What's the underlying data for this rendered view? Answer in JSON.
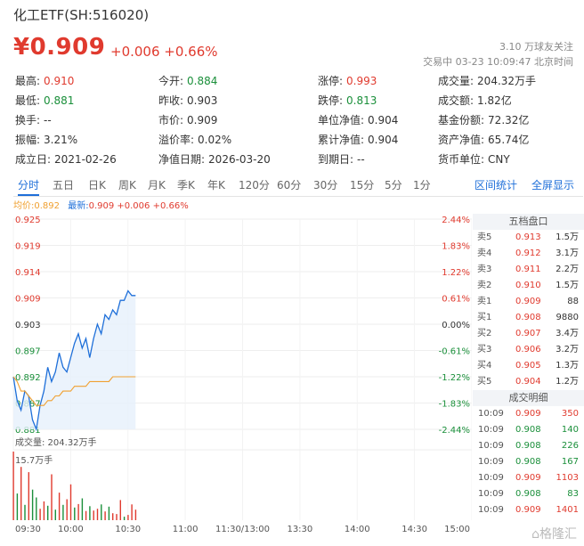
{
  "header": {
    "title": "化工ETF(SH:516020)",
    "price": "¥0.909",
    "change": "+0.006 +0.66%",
    "followers": "3.10",
    "followers_unit": "万球友关注",
    "trade_status": "交易中 03-23 10:09:47 北京时间"
  },
  "stats": [
    [
      {
        "label": "最高:",
        "value": "0.910",
        "color": "red"
      },
      {
        "label": "今开:",
        "value": "0.884",
        "color": "green"
      },
      {
        "label": "涨停:",
        "value": "0.993",
        "color": "red"
      },
      {
        "label": "成交量:",
        "value": "204.32万手",
        "color": "dark"
      }
    ],
    [
      {
        "label": "最低:",
        "value": "0.881",
        "color": "green"
      },
      {
        "label": "昨收:",
        "value": "0.903",
        "color": "dark"
      },
      {
        "label": "跌停:",
        "value": "0.813",
        "color": "green"
      },
      {
        "label": "成交额:",
        "value": "1.82亿",
        "color": "dark"
      }
    ],
    [
      {
        "label": "换手:",
        "value": "--",
        "color": "dark"
      },
      {
        "label": "市价:",
        "value": "0.909",
        "color": "dark"
      },
      {
        "label": "单位净值:",
        "value": "0.904",
        "color": "dark"
      },
      {
        "label": "基金份额:",
        "value": "72.32亿",
        "color": "dark"
      }
    ],
    [
      {
        "label": "振幅:",
        "value": "3.21%",
        "color": "dark"
      },
      {
        "label": "溢价率:",
        "value": "0.02%",
        "color": "dark"
      },
      {
        "label": "累计净值:",
        "value": "0.904",
        "color": "dark"
      },
      {
        "label": "资产净值:",
        "value": "65.74亿",
        "color": "dark"
      }
    ],
    [
      {
        "label": "成立日:",
        "value": "2021-02-26",
        "color": "dark"
      },
      {
        "label": "净值日期:",
        "value": "2026-03-20",
        "color": "dark"
      },
      {
        "label": "到期日:",
        "value": "--",
        "color": "dark"
      },
      {
        "label": "货币单位:",
        "value": "CNY",
        "color": "dark"
      }
    ]
  ],
  "tabs": [
    "分时",
    "五日",
    "日K",
    "周K",
    "月K",
    "季K",
    "年K",
    "120分",
    "60分",
    "30分",
    "15分",
    "5分",
    "1分"
  ],
  "tab_active": 0,
  "tab_right": [
    "区间统计",
    "全屏显示"
  ],
  "legend": {
    "avg_label": "均价:",
    "avg_value": "0.892",
    "latest_label": "最新:",
    "latest_value": "0.909 +0.006 +0.66%"
  },
  "chart_data": {
    "type": "line",
    "y_ticks": [
      {
        "price": "0.925",
        "pct": "2.44%",
        "color": "red"
      },
      {
        "price": "0.919",
        "pct": "1.83%",
        "color": "red"
      },
      {
        "price": "0.914",
        "pct": "1.22%",
        "color": "red"
      },
      {
        "price": "0.909",
        "pct": "0.61%",
        "color": "red"
      },
      {
        "price": "0.903",
        "pct": "0.00%",
        "color": "dark"
      },
      {
        "price": "0.897",
        "pct": "-0.61%",
        "color": "green"
      },
      {
        "price": "0.892",
        "pct": "-1.22%",
        "color": "green"
      },
      {
        "price": "0.887",
        "pct": "-1.83%",
        "color": "green"
      },
      {
        "price": "0.881",
        "pct": "-2.44%",
        "color": "green"
      }
    ],
    "ylim": [
      0.881,
      0.925
    ],
    "x_ticks": [
      "09:30",
      "10:00",
      "10:30",
      "11:00",
      "11:30/13:00",
      "13:30",
      "14:00",
      "14:30",
      "15:00"
    ],
    "x_range_minutes": 240,
    "price_series": [
      0.892,
      0.887,
      0.885,
      0.889,
      0.888,
      0.883,
      0.881,
      0.886,
      0.889,
      0.894,
      0.891,
      0.893,
      0.897,
      0.894,
      0.893,
      0.896,
      0.899,
      0.901,
      0.898,
      0.9,
      0.896,
      0.9,
      0.903,
      0.901,
      0.905,
      0.904,
      0.906,
      0.905,
      0.908,
      0.908,
      0.91,
      0.909,
      0.909
    ],
    "avg_series": [
      0.892,
      0.891,
      0.889,
      0.889,
      0.888,
      0.887,
      0.886,
      0.886,
      0.886,
      0.887,
      0.887,
      0.888,
      0.888,
      0.889,
      0.889,
      0.889,
      0.89,
      0.89,
      0.89,
      0.89,
      0.891,
      0.891,
      0.891,
      0.891,
      0.891,
      0.891,
      0.892,
      0.892,
      0.892,
      0.892,
      0.892,
      0.892,
      0.892
    ],
    "volume_label": "成交量:",
    "volume_value": "204.32万手",
    "volume_max_label": "15.7万手",
    "volume_max": 15.7,
    "volume_series": [
      15.7,
      6.1,
      12.2,
      3.5,
      11.0,
      7.0,
      5.2,
      2.6,
      4.3,
      3.3,
      10.5,
      2.4,
      6.3,
      3.5,
      4.8,
      8.2,
      2.9,
      3.7,
      5.0,
      2.1,
      3.2,
      2.2,
      2.6,
      3.6,
      2.0,
      3.1,
      1.6,
      1.4,
      4.6,
      0.8,
      1.2,
      3.6,
      2.4
    ],
    "volume_colors": [
      "red",
      "green",
      "red",
      "green",
      "red",
      "green",
      "green",
      "red",
      "red",
      "green",
      "red",
      "green",
      "red",
      "green",
      "red",
      "red",
      "green",
      "red",
      "green",
      "red",
      "green",
      "red",
      "red",
      "green",
      "red",
      "green",
      "red",
      "red",
      "red",
      "green",
      "red",
      "red",
      "red"
    ]
  },
  "order_book": {
    "title": "五档盘口",
    "rows": [
      {
        "label": "卖5",
        "price": "0.913",
        "vol": "1.5万",
        "color": "red"
      },
      {
        "label": "卖4",
        "price": "0.912",
        "vol": "3.1万",
        "color": "red"
      },
      {
        "label": "卖3",
        "price": "0.911",
        "vol": "2.2万",
        "color": "red"
      },
      {
        "label": "卖2",
        "price": "0.910",
        "vol": "1.5万",
        "color": "red"
      },
      {
        "label": "卖1",
        "price": "0.909",
        "vol": "88",
        "color": "red"
      },
      {
        "label": "买1",
        "price": "0.908",
        "vol": "9880",
        "color": "red"
      },
      {
        "label": "买2",
        "price": "0.907",
        "vol": "3.4万",
        "color": "red"
      },
      {
        "label": "买3",
        "price": "0.906",
        "vol": "3.2万",
        "color": "red"
      },
      {
        "label": "买4",
        "price": "0.905",
        "vol": "1.3万",
        "color": "red"
      },
      {
        "label": "买5",
        "price": "0.904",
        "vol": "1.2万",
        "color": "red"
      }
    ]
  },
  "trade_detail": {
    "title": "成交明细",
    "rows": [
      {
        "time": "10:09",
        "price": "0.909",
        "vol": "350",
        "color": "red"
      },
      {
        "time": "10:09",
        "price": "0.908",
        "vol": "140",
        "color": "green"
      },
      {
        "time": "10:09",
        "price": "0.908",
        "vol": "226",
        "color": "green"
      },
      {
        "time": "10:09",
        "price": "0.908",
        "vol": "167",
        "color": "green"
      },
      {
        "time": "10:09",
        "price": "0.909",
        "vol": "1103",
        "color": "red"
      },
      {
        "time": "10:09",
        "price": "0.908",
        "vol": "83",
        "color": "green"
      },
      {
        "time": "10:09",
        "price": "0.909",
        "vol": "1401",
        "color": "red"
      }
    ]
  },
  "watermark": "格隆汇",
  "colors": {
    "red": "#e03a2e",
    "green": "#1a8f3a",
    "blue": "#1e6fd9",
    "avg": "#f0a030"
  }
}
